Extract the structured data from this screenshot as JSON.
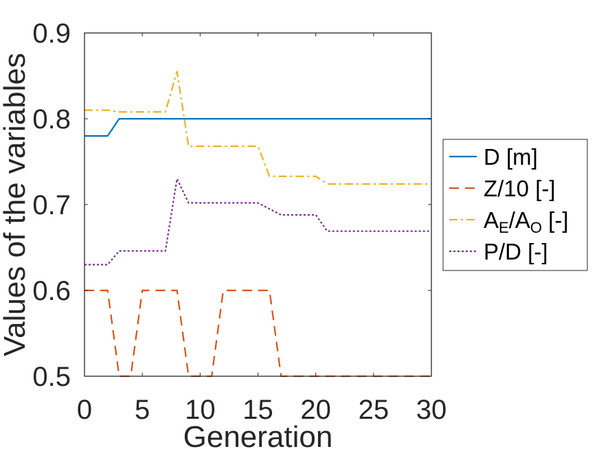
{
  "chart_data": {
    "type": "line",
    "title": "",
    "xlabel": "Generation",
    "ylabel": "Values of the variables",
    "xlim": [
      0,
      30
    ],
    "ylim": [
      0.5,
      0.9
    ],
    "xticks": [
      0,
      5,
      10,
      15,
      20,
      25,
      30
    ],
    "xtick_labels": [
      "0",
      "5",
      "10",
      "15",
      "20",
      "25",
      "30"
    ],
    "yticks": [
      0.5,
      0.6,
      0.7,
      0.8,
      0.9
    ],
    "ytick_labels": [
      "0.5",
      "0.6",
      "0.7",
      "0.8",
      "0.9"
    ],
    "grid": false,
    "legend_position": "outside-right",
    "series": [
      {
        "name": "D [m]",
        "color": "#0072BD",
        "style": "solid",
        "x": [
          0,
          1,
          2,
          3,
          4,
          5,
          6,
          7,
          8,
          9,
          10,
          11,
          12,
          13,
          14,
          15,
          16,
          17,
          18,
          19,
          20,
          21,
          22,
          23,
          24,
          25,
          26,
          27,
          28,
          29,
          30
        ],
        "values": [
          0.78,
          0.78,
          0.78,
          0.8,
          0.8,
          0.8,
          0.8,
          0.8,
          0.8,
          0.8,
          0.8,
          0.8,
          0.8,
          0.8,
          0.8,
          0.8,
          0.8,
          0.8,
          0.8,
          0.8,
          0.8,
          0.8,
          0.8,
          0.8,
          0.8,
          0.8,
          0.8,
          0.8,
          0.8,
          0.8,
          0.8
        ]
      },
      {
        "name": "Z/10 [-]",
        "color": "#D95319",
        "style": "dashed",
        "x": [
          0,
          1,
          2,
          3,
          4,
          5,
          6,
          7,
          8,
          9,
          10,
          11,
          12,
          13,
          14,
          15,
          16,
          17,
          18,
          19,
          20,
          21,
          22,
          23,
          24,
          25,
          26,
          27,
          28,
          29,
          30
        ],
        "values": [
          0.6,
          0.6,
          0.6,
          0.5,
          0.5,
          0.6,
          0.6,
          0.6,
          0.6,
          0.5,
          0.5,
          0.5,
          0.6,
          0.6,
          0.6,
          0.6,
          0.6,
          0.5,
          0.5,
          0.5,
          0.5,
          0.5,
          0.5,
          0.5,
          0.5,
          0.5,
          0.5,
          0.5,
          0.5,
          0.5,
          0.5
        ]
      },
      {
        "name": "A_E/A_O [-]",
        "color": "#EDB120",
        "style": "dashdot",
        "x": [
          0,
          1,
          2,
          3,
          4,
          5,
          6,
          7,
          8,
          9,
          10,
          11,
          12,
          13,
          14,
          15,
          16,
          17,
          18,
          19,
          20,
          21,
          22,
          23,
          24,
          25,
          26,
          27,
          28,
          29,
          30
        ],
        "values": [
          0.81,
          0.81,
          0.81,
          0.808,
          0.808,
          0.808,
          0.808,
          0.808,
          0.855,
          0.768,
          0.768,
          0.768,
          0.768,
          0.768,
          0.768,
          0.768,
          0.733,
          0.733,
          0.733,
          0.733,
          0.733,
          0.724,
          0.724,
          0.724,
          0.724,
          0.724,
          0.724,
          0.724,
          0.724,
          0.724,
          0.724
        ]
      },
      {
        "name": "P/D [-]",
        "color": "#7E2F8E",
        "style": "dotted",
        "x": [
          0,
          1,
          2,
          3,
          4,
          5,
          6,
          7,
          8,
          9,
          10,
          11,
          12,
          13,
          14,
          15,
          16,
          17,
          18,
          19,
          20,
          21,
          22,
          23,
          24,
          25,
          26,
          27,
          28,
          29,
          30
        ],
        "values": [
          0.63,
          0.63,
          0.63,
          0.646,
          0.646,
          0.646,
          0.646,
          0.646,
          0.73,
          0.702,
          0.702,
          0.702,
          0.702,
          0.702,
          0.702,
          0.702,
          0.695,
          0.688,
          0.688,
          0.688,
          0.688,
          0.669,
          0.669,
          0.669,
          0.669,
          0.669,
          0.669,
          0.669,
          0.669,
          0.669,
          0.669
        ]
      }
    ]
  },
  "legend": {
    "entries": [
      {
        "main": "D [m]"
      },
      {
        "main": "Z/10 [-]"
      },
      {
        "parts": [
          {
            "text": "A",
            "sub": false
          },
          {
            "text": "E",
            "sub": true
          },
          {
            "text": "/A",
            "sub": false
          },
          {
            "text": "O",
            "sub": true
          },
          {
            "text": " [-]",
            "sub": false
          }
        ]
      },
      {
        "main": "P/D [-]"
      }
    ]
  }
}
